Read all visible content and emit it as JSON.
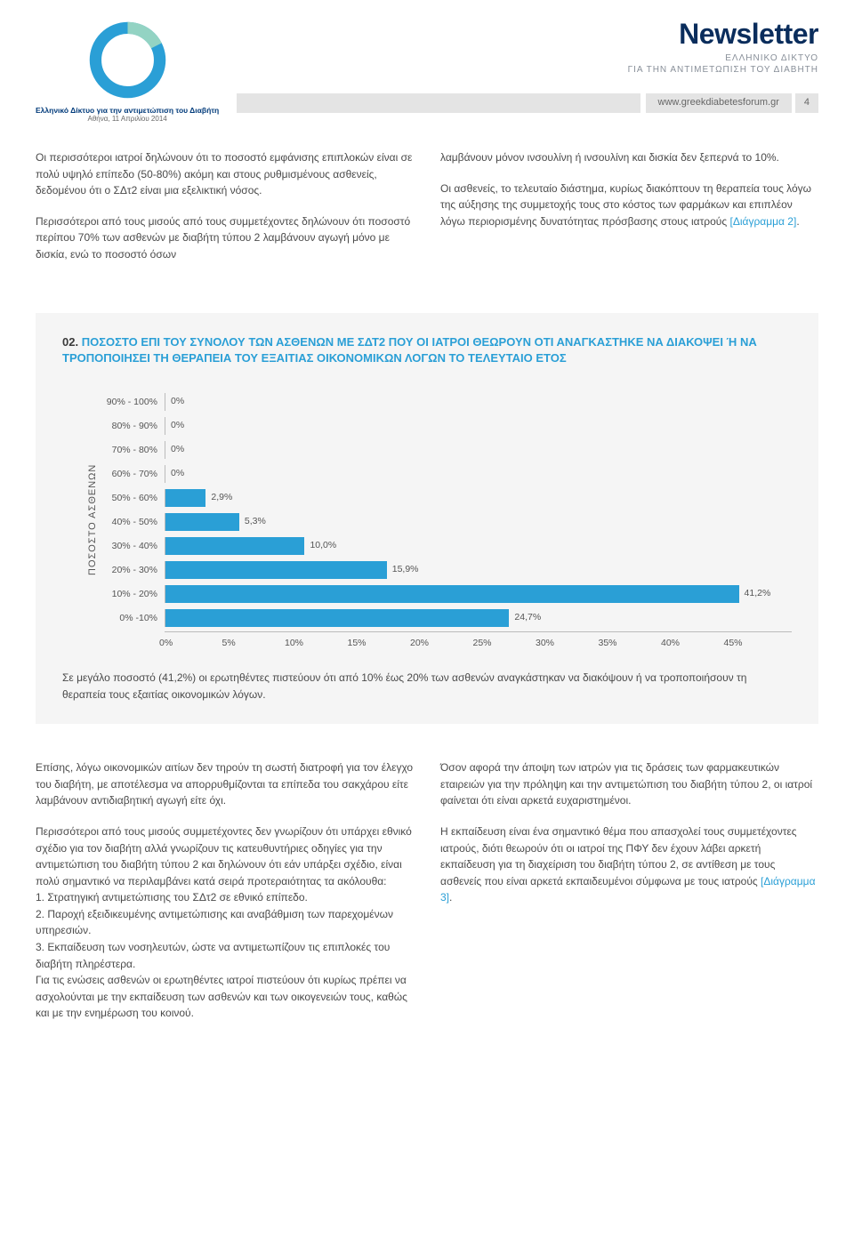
{
  "header": {
    "logo_caption": "Ελληνικό Δίκτυο για την αντιμετώπιση του Διαβήτη",
    "logo_date": "Αθήνα, 11 Απριλίου 2014",
    "title": "Newsletter",
    "subtitle_line1": "ΕΛΛΗΝΙΚΟ ΔΙΚΤΥΟ",
    "subtitle_line2": "ΓΙΑ ΤΗΝ ΑΝΤΙΜΕΤΩΠΙΣΗ ΤΟΥ ΔΙΑΒΗΤΗ",
    "url": "www.greekdiabetesforum.gr",
    "page_num": "4",
    "logo_colors": {
      "main": "#2a9fd6",
      "accent": "#93d3c3",
      "stroke_width": 14
    }
  },
  "intro": {
    "left_p1": "Οι περισσότεροι ιατροί δηλώνουν ότι το ποσοστό εμφάνισης επιπλοκών είναι σε πολύ υψηλό επίπεδο (50-80%) ακόμη και στους ρυθμισμένους ασθενείς, δεδομένου ότι ο ΣΔτ2 είναι μια εξελικτική νόσος.",
    "left_p2": "Περισσότεροι από τους μισούς από τους συμμετέχοντες δηλώνουν ότι ποσοστό περίπου 70% των ασθενών με διαβήτη τύπου 2 λαμβάνουν αγωγή μόνο με δισκία, ενώ το ποσοστό όσων",
    "right_p1": "λαμβάνουν μόνον ινσουλίνη ή ινσουλίνη και δισκία δεν ξεπερνά το 10%.",
    "right_p2a": "Οι ασθενείς, το τελευταίο διάστημα, κυρίως διακόπτουν τη θεραπεία τους λόγω της αύξησης της συμμετοχής τους στο κόστος των φαρμάκων και επιπλέον λόγω περιορισμένης δυνατότητας πρόσβασης στους ιατρούς ",
    "right_p2_ref": "[Διάγραμμα 2]",
    "right_p2b": "."
  },
  "chart": {
    "num": "02.",
    "title": " ΠΟΣΟΣΤΟ ΕΠΙ ΤΟΥ ΣΥΝΟΛΟΥ ΤΩΝ ΑΣΘΕΝΩΝ ΜΕ ΣΔΤ2 ΠΟΥ ΟΙ ΙΑΤΡΟΙ ΘΕΩΡΟΥΝ ΟΤΙ ΑΝΑΓΚΑΣΤΗΚΕ ΝΑ ΔΙΑΚΟΨΕΙ Ή ΝΑ ΤΡΟΠΟΠΟΙΗΣΕΙ ΤΗ ΘΕΡΑΠΕΙΑ ΤΟΥ ΕΞΑΙΤΙΑΣ ΟΙΚΟΝΟΜΙΚΩΝ ΛΟΓΩΝ ΤΟ ΤΕΛΕΥΤΑΙΟ ΕΤΟΣ",
    "y_axis_label": "ΠΟΣΟΣΤΟ ΑΣΘΕΝΩΝ",
    "type": "horizontal-bar",
    "bar_color": "#2a9fd6",
    "background_color": "#f5f5f5",
    "x_max": 45,
    "x_ticks": [
      "0%",
      "5%",
      "10%",
      "15%",
      "20%",
      "25%",
      "30%",
      "35%",
      "40%",
      "45%"
    ],
    "categories": [
      "90% - 100%",
      "80% - 90%",
      "70% - 80%",
      "60% - 70%",
      "50% - 60%",
      "40% - 50%",
      "30% - 40%",
      "20% - 30%",
      "10% - 20%",
      "0% -10%"
    ],
    "values": [
      0,
      0,
      0,
      0,
      2.9,
      5.3,
      10.0,
      15.9,
      41.2,
      24.7
    ],
    "value_labels": [
      "0%",
      "0%",
      "0%",
      "0%",
      "2,9%",
      "5,3%",
      "10,0%",
      "15,9%",
      "41,2%",
      "24,7%"
    ],
    "footnote": "Σε μεγάλο ποσοστό (41,2%) οι ερωτηθέντες πιστεύουν ότι από 10% έως 20% των ασθενών αναγκάστηκαν να διακόψουν ή να τροποποιήσουν τη θεραπεία τους εξαιτίας οικονομικών λόγων."
  },
  "lower": {
    "left_p1": "Επίσης, λόγω οικονομικών αιτίων δεν τηρούν τη σωστή διατροφή για τον έλεγχο του διαβήτη, με αποτέλεσμα να απορρυθμίζονται τα επίπεδα του σακχάρου είτε λαμβάνουν αντιδιαβητική αγωγή είτε όχι.",
    "left_p2": "Περισσότεροι από τους μισούς συμμετέχοντες δεν γνωρίζουν ότι υπάρχει εθνικό σχέδιο για τον διαβήτη αλλά γνωρίζουν τις κατευθυντήριες οδηγίες για την αντιμετώπιση του διαβήτη τύπου 2 και δηλώνουν ότι εάν υπάρξει σχέδιο, είναι πολύ σημαντικό να περιλαμβάνει κατά σειρά προτεραιότητας τα ακόλουθα:",
    "left_li1": "1. Στρατηγική αντιμετώπισης του ΣΔτ2 σε εθνικό επίπεδο.",
    "left_li2": "2. Παροχή εξειδικευμένης αντιμετώπισης και αναβάθμιση των παρεχομένων υπηρεσιών.",
    "left_li3": "3. Εκπαίδευση των νοσηλευτών, ώστε να αντιμετωπίζουν τις επιπλοκές του διαβήτη πληρέστερα.",
    "left_p3": "Για τις ενώσεις ασθενών οι ερωτηθέντες ιατροί πιστεύουν ότι κυρίως πρέπει να ασχολούνται με την εκπαίδευση των ασθενών και των οικογενειών τους, καθώς και με την ενημέρωση του κοινού.",
    "right_p1": "Όσον αφορά την άποψη των ιατρών για τις δράσεις των φαρμακευτικών εταιρειών για την πρόληψη και την αντιμετώπιση του διαβήτη τύπου 2, οι ιατροί φαίνεται ότι είναι αρκετά ευχαριστημένοι.",
    "right_p2a": "Η εκπαίδευση είναι ένα σημαντικό θέμα που απασχολεί τους συμμετέχοντες ιατρούς, διότι θεωρούν ότι οι ιατροί της ΠΦΥ δεν έχουν λάβει αρκετή εκπαίδευση για τη διαχείριση του διαβήτη τύπου 2, σε αντίθεση με τους ασθενείς που είναι αρκετά εκπαιδευμένοι σύμφωνα με τους ιατρούς ",
    "right_p2_ref": "[Διάγραμμα 3]",
    "right_p2b": "."
  }
}
